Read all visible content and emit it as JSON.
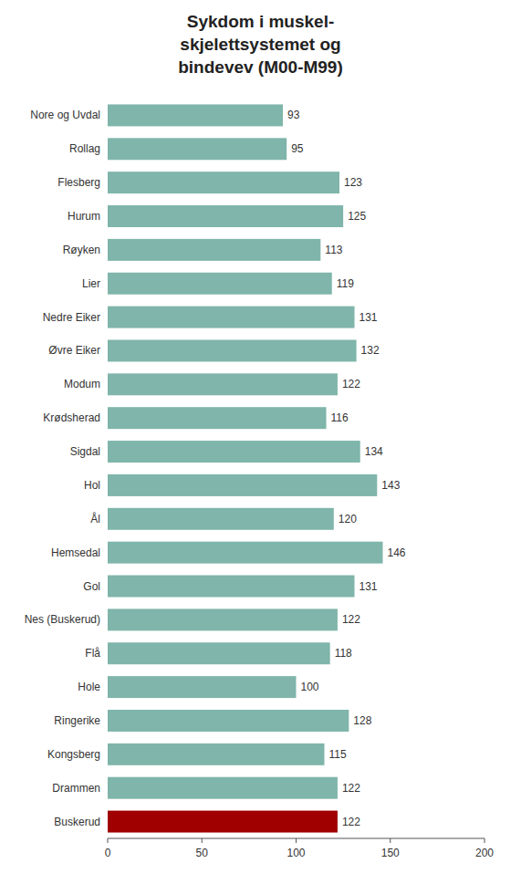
{
  "chart_data": {
    "type": "bar",
    "orientation": "horizontal",
    "title": "Sykdom i muskel-\nskjelettsystemet og\nbindevev (M00-M99)",
    "categories": [
      "Nore og Uvdal",
      "Rollag",
      "Flesberg",
      "Hurum",
      "Røyken",
      "Lier",
      "Nedre Eiker",
      "Øvre Eiker",
      "Modum",
      "Krødsherad",
      "Sigdal",
      "Hol",
      "Ål",
      "Hemsedal",
      "Gol",
      "Nes (Buskerud)",
      "Flå",
      "Hole",
      "Ringerike",
      "Kongsberg",
      "Drammen",
      "Buskerud"
    ],
    "values": [
      93,
      95,
      123,
      125,
      113,
      119,
      131,
      132,
      122,
      116,
      134,
      143,
      120,
      146,
      131,
      122,
      118,
      100,
      128,
      115,
      122,
      122
    ],
    "colors": [
      "#7fb5aa",
      "#7fb5aa",
      "#7fb5aa",
      "#7fb5aa",
      "#7fb5aa",
      "#7fb5aa",
      "#7fb5aa",
      "#7fb5aa",
      "#7fb5aa",
      "#7fb5aa",
      "#7fb5aa",
      "#7fb5aa",
      "#7fb5aa",
      "#7fb5aa",
      "#7fb5aa",
      "#7fb5aa",
      "#7fb5aa",
      "#7fb5aa",
      "#7fb5aa",
      "#7fb5aa",
      "#7fb5aa",
      "#a00000"
    ],
    "xlim": [
      0,
      200
    ],
    "xticks": [
      0,
      50,
      100,
      150,
      200
    ],
    "data_labels": true,
    "grid": false
  }
}
